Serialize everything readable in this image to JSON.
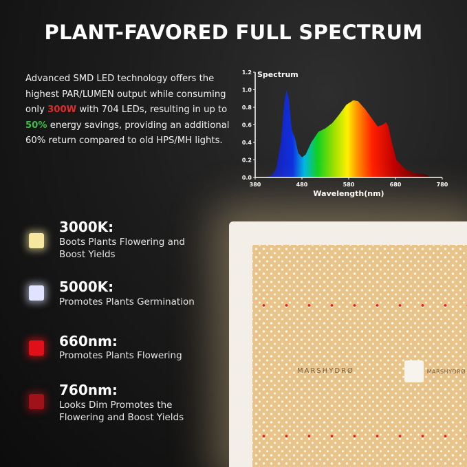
{
  "title": "PLANT-FAVORED FULL SPECTRUM",
  "intro": {
    "part1": "Advanced SMD LED technology offers the highest PAR/LUMEN output while consuming only ",
    "wattage": "300W",
    "part2": " with 704 LEDs, resulting in up to ",
    "savings": "50%",
    "part3": " energy savings, providing an additional 60% return compared to old HPS/MH lights."
  },
  "features": [
    {
      "title": "3000K:",
      "desc": "Boots Plants Flowering and Boost Yields",
      "color": "#f6e7a0"
    },
    {
      "title": "5000K:",
      "desc": "Promotes Plants Germination",
      "color": "#dfe3ff"
    },
    {
      "title": "660nm:",
      "desc": "Promotes Plants Flowering",
      "color": "#e0101a"
    },
    {
      "title": "760nm:",
      "desc": "Looks Dim Promotes the Flowering and Boost Yields",
      "color": "#a0121a"
    }
  ],
  "product": {
    "brand": "MARSHYDRØ"
  },
  "chart_data": {
    "type": "area",
    "title": "Spectrum",
    "xlabel": "Wavelength(nm)",
    "ylabel": "",
    "xlim": [
      380,
      780
    ],
    "ylim": [
      0,
      1.2
    ],
    "xticks": [
      "380",
      "480",
      "580",
      "680",
      "780"
    ],
    "yticks": [
      "0.0",
      "0.2",
      "0.4",
      "0.6",
      "0.8",
      "1.0",
      "1.2"
    ],
    "grid": false,
    "x": [
      400,
      415,
      425,
      435,
      442,
      447,
      452,
      458,
      465,
      472,
      480,
      488,
      500,
      515,
      530,
      545,
      560,
      575,
      590,
      600,
      615,
      630,
      642,
      652,
      660,
      665,
      672,
      682,
      700,
      720,
      740,
      750,
      755
    ],
    "y": [
      0,
      0.02,
      0.1,
      0.4,
      0.85,
      1.0,
      0.9,
      0.55,
      0.45,
      0.28,
      0.23,
      0.26,
      0.4,
      0.52,
      0.56,
      0.62,
      0.72,
      0.83,
      0.88,
      0.87,
      0.78,
      0.67,
      0.58,
      0.6,
      0.63,
      0.58,
      0.4,
      0.2,
      0.1,
      0.05,
      0.04,
      0.02,
      0
    ]
  }
}
